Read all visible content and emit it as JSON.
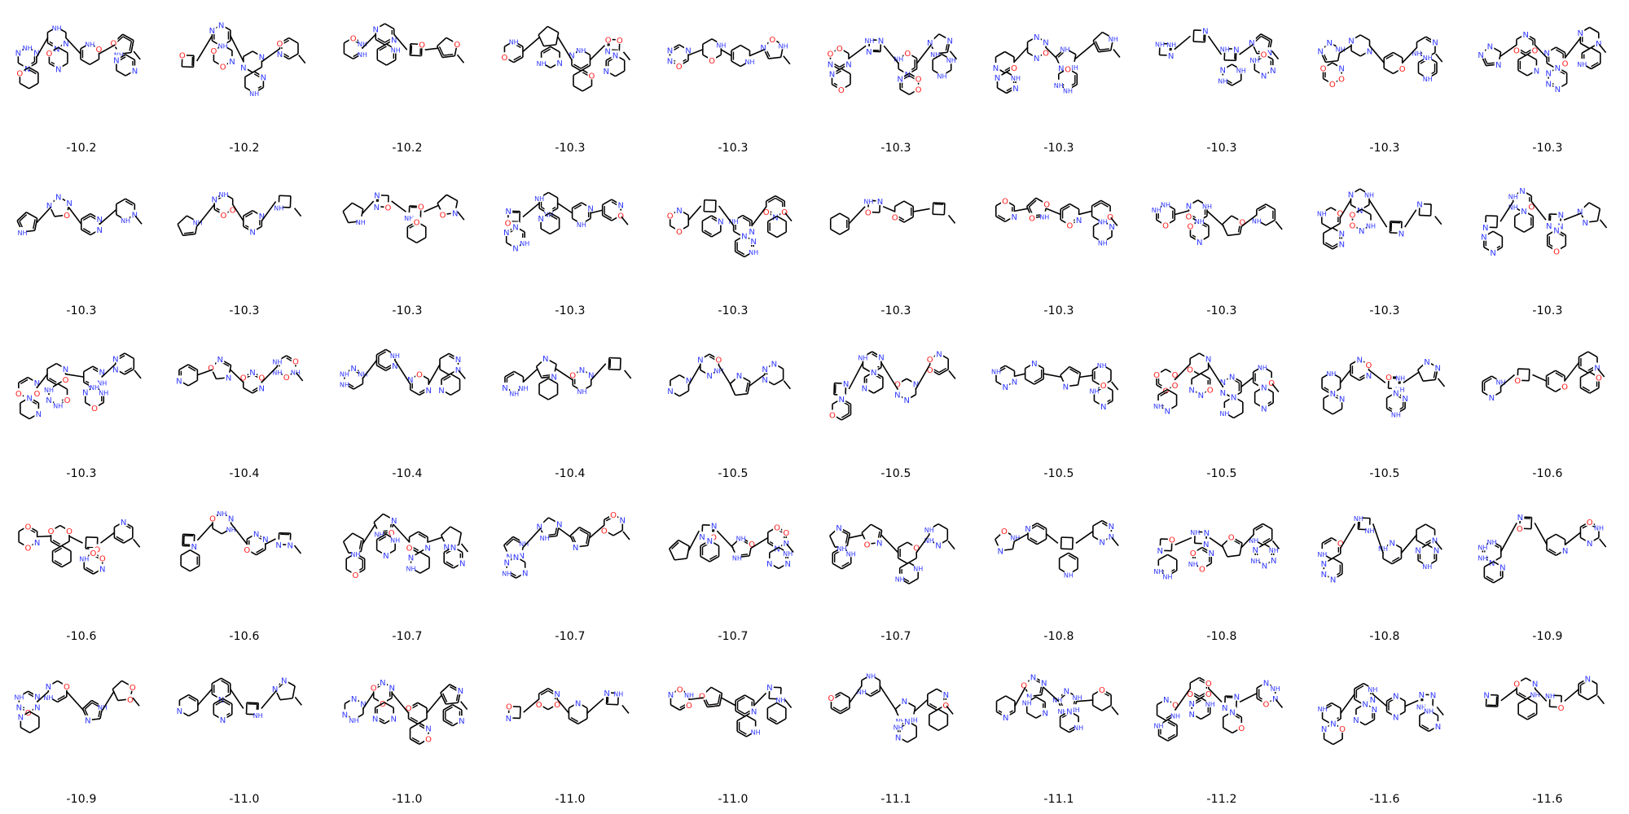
{
  "colors": {
    "bond": "#000000",
    "nitrogen": "#2f37ff",
    "oxygen": "#ff1a1a",
    "background": "#ffffff"
  },
  "grid": {
    "columns": 10,
    "rows": 5,
    "cells": [
      {
        "score": "-10.2"
      },
      {
        "score": "-10.2"
      },
      {
        "score": "-10.2"
      },
      {
        "score": "-10.3"
      },
      {
        "score": "-10.3"
      },
      {
        "score": "-10.3"
      },
      {
        "score": "-10.3"
      },
      {
        "score": "-10.3"
      },
      {
        "score": "-10.3"
      },
      {
        "score": "-10.3"
      },
      {
        "score": "-10.3"
      },
      {
        "score": "-10.3"
      },
      {
        "score": "-10.3"
      },
      {
        "score": "-10.3"
      },
      {
        "score": "-10.3"
      },
      {
        "score": "-10.3"
      },
      {
        "score": "-10.3"
      },
      {
        "score": "-10.3"
      },
      {
        "score": "-10.3"
      },
      {
        "score": "-10.3"
      },
      {
        "score": "-10.3"
      },
      {
        "score": "-10.4"
      },
      {
        "score": "-10.4"
      },
      {
        "score": "-10.4"
      },
      {
        "score": "-10.5"
      },
      {
        "score": "-10.5"
      },
      {
        "score": "-10.5"
      },
      {
        "score": "-10.5"
      },
      {
        "score": "-10.5"
      },
      {
        "score": "-10.6"
      },
      {
        "score": "-10.6"
      },
      {
        "score": "-10.6"
      },
      {
        "score": "-10.7"
      },
      {
        "score": "-10.7"
      },
      {
        "score": "-10.7"
      },
      {
        "score": "-10.7"
      },
      {
        "score": "-10.8"
      },
      {
        "score": "-10.8"
      },
      {
        "score": "-10.8"
      },
      {
        "score": "-10.9"
      },
      {
        "score": "-10.9"
      },
      {
        "score": "-11.0"
      },
      {
        "score": "-11.0"
      },
      {
        "score": "-11.0"
      },
      {
        "score": "-11.0"
      },
      {
        "score": "-11.1"
      },
      {
        "score": "-11.1"
      },
      {
        "score": "-11.2"
      },
      {
        "score": "-11.6"
      },
      {
        "score": "-11.6"
      }
    ]
  }
}
